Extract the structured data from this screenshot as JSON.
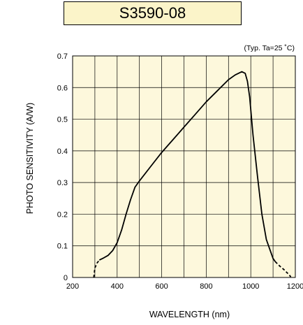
{
  "chart_data": {
    "type": "line",
    "title": "S3590-08",
    "condition_note": "(Typ. Ta=25 ˚C)",
    "xlabel": "WAVELENGTH (nm)",
    "ylabel": "PHOTO SENSITIVITY (A/W)",
    "xlim": [
      200,
      1200
    ],
    "ylim": [
      0,
      0.7
    ],
    "x_ticks": [
      "200",
      "400",
      "600",
      "800",
      "1000",
      "1200"
    ],
    "y_ticks": [
      "0",
      "0.1",
      "0.2",
      "0.3",
      "0.4",
      "0.5",
      "0.6",
      "0.7"
    ],
    "grid": true,
    "background_color": "#fdf8dc",
    "title_box_color": "#fbf4c9",
    "series": [
      {
        "style": "solid",
        "x": [
          320,
          340,
          360,
          380,
          400,
          420,
          440,
          460,
          480,
          500,
          550,
          600,
          650,
          700,
          750,
          800,
          850,
          900,
          930,
          960,
          975,
          985,
          995,
          1010,
          1030,
          1050,
          1070,
          1090,
          1100,
          1110
        ],
        "y": [
          0.055,
          0.062,
          0.07,
          0.085,
          0.11,
          0.15,
          0.2,
          0.245,
          0.285,
          0.305,
          0.35,
          0.395,
          0.435,
          0.475,
          0.515,
          0.555,
          0.59,
          0.625,
          0.64,
          0.65,
          0.645,
          0.62,
          0.57,
          0.45,
          0.32,
          0.2,
          0.12,
          0.08,
          0.06,
          0.05
        ]
      },
      {
        "style": "dashed",
        "x": [
          295,
          300,
          310,
          320
        ],
        "y": [
          0.0,
          0.03,
          0.046,
          0.055
        ]
      },
      {
        "style": "dashed",
        "x": [
          1110,
          1130,
          1150,
          1170,
          1180
        ],
        "y": [
          0.05,
          0.036,
          0.024,
          0.01,
          0.002
        ]
      }
    ]
  }
}
